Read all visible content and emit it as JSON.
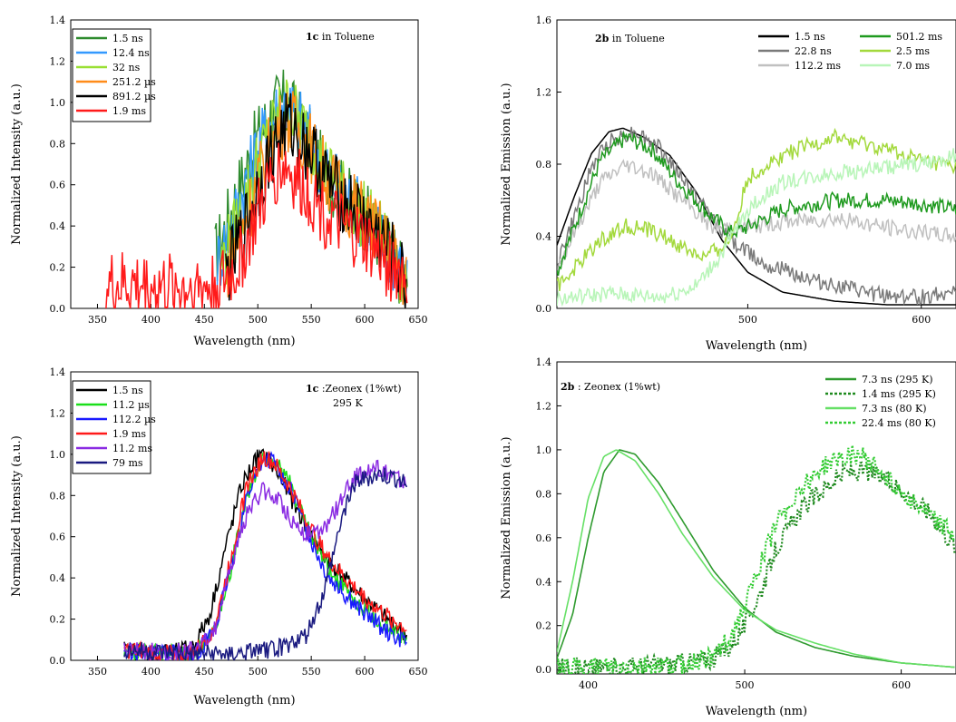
{
  "chart_data": [
    {
      "type": "line",
      "annotation": [
        "1c in Toluene"
      ],
      "annotation_bold_prefix": "1c",
      "xlabel": "Wavelength (nm)",
      "ylabel": "Normalized Intensity (a.u.)",
      "xlim": [
        325,
        650
      ],
      "ylim": [
        0,
        1.4
      ],
      "xticks": [
        350,
        400,
        450,
        500,
        550,
        600,
        650
      ],
      "yticks": [
        0.0,
        0.2,
        0.4,
        0.6,
        0.8,
        1.0,
        1.2,
        1.4
      ],
      "ytick_labels": [
        "0.0",
        "0.2",
        "0.4",
        "0.6",
        "0.8",
        "1.0",
        "1.2",
        "1.4"
      ],
      "legend": "top-left boxed",
      "series": [
        {
          "name": "1.5 ns",
          "color": "#2e8b2e",
          "x": [
            460,
            480,
            500,
            515,
            522,
            530,
            545,
            560,
            580,
            600,
            620,
            640
          ],
          "y": [
            0.25,
            0.55,
            0.83,
            0.97,
            1.0,
            0.97,
            0.85,
            0.68,
            0.55,
            0.45,
            0.3,
            0.12
          ]
        },
        {
          "name": "12.4 ns",
          "color": "#3399ff",
          "x": [
            462,
            480,
            500,
            518,
            526,
            533,
            548,
            563,
            582,
            602,
            622,
            640
          ],
          "y": [
            0.22,
            0.47,
            0.78,
            0.96,
            1.0,
            0.96,
            0.84,
            0.67,
            0.54,
            0.44,
            0.29,
            0.12
          ]
        },
        {
          "name": "32 ns",
          "color": "#99e033",
          "x": [
            465,
            482,
            502,
            520,
            528,
            535,
            550,
            565,
            584,
            604,
            624,
            640
          ],
          "y": [
            0.2,
            0.42,
            0.74,
            0.93,
            0.98,
            0.93,
            0.82,
            0.66,
            0.53,
            0.43,
            0.28,
            0.12
          ]
        },
        {
          "name": "251.2 µs",
          "color": "#ff8c1a",
          "x": [
            470,
            485,
            505,
            520,
            528,
            535,
            550,
            565,
            585,
            605,
            625,
            640
          ],
          "y": [
            0.18,
            0.38,
            0.7,
            0.88,
            0.92,
            0.88,
            0.78,
            0.64,
            0.52,
            0.42,
            0.28,
            0.12
          ]
        },
        {
          "name": "891.2 µs",
          "color": "#000000",
          "x": [
            470,
            485,
            505,
            520,
            528,
            535,
            550,
            565,
            585,
            605,
            625,
            640
          ],
          "y": [
            0.15,
            0.35,
            0.66,
            0.84,
            0.9,
            0.86,
            0.76,
            0.62,
            0.5,
            0.4,
            0.26,
            0.1
          ]
        },
        {
          "name": "1.9 ms",
          "color": "#ff1a1a",
          "x": [
            358,
            380,
            400,
            420,
            440,
            460,
            480,
            500,
            515,
            525,
            535,
            550,
            565,
            580,
            600,
            620,
            640
          ],
          "y": [
            0.1,
            0.11,
            0.1,
            0.1,
            0.1,
            0.1,
            0.18,
            0.45,
            0.65,
            0.7,
            0.62,
            0.55,
            0.45,
            0.38,
            0.32,
            0.22,
            0.15
          ]
        }
      ]
    },
    {
      "type": "line",
      "annotation": [
        "2b in Toluene"
      ],
      "annotation_bold_prefix": "2b",
      "xlabel": "Wavelength (nm)",
      "ylabel": "Normalized Emission (a.u.)",
      "xlim": [
        390,
        620
      ],
      "ylim": [
        0,
        1.6
      ],
      "xticks": [
        500,
        600
      ],
      "yticks": [
        0.0,
        0.4,
        0.8,
        1.2,
        1.6
      ],
      "ytick_labels": [
        "0.0",
        "0.4",
        "0.8",
        "1.2",
        "1.6"
      ],
      "legend": "top-right",
      "series": [
        {
          "name": "1.5 ns",
          "color": "#000000",
          "x": [
            390,
            400,
            410,
            420,
            428,
            440,
            455,
            470,
            485,
            500,
            520,
            550,
            580,
            620
          ],
          "y": [
            0.35,
            0.62,
            0.86,
            0.98,
            1.0,
            0.95,
            0.85,
            0.65,
            0.38,
            0.2,
            0.09,
            0.04,
            0.02,
            0.02
          ]
        },
        {
          "name": "22.8 ns",
          "color": "#7a7a7a",
          "x": [
            390,
            400,
            410,
            420,
            435,
            450,
            470,
            490,
            510,
            540,
            570,
            600,
            620
          ],
          "y": [
            0.25,
            0.5,
            0.78,
            0.93,
            0.98,
            0.88,
            0.62,
            0.38,
            0.25,
            0.15,
            0.08,
            0.06,
            0.1
          ]
        },
        {
          "name": "112.2 ms",
          "color": "#c0c0c0",
          "x": [
            390,
            400,
            415,
            430,
            445,
            460,
            480,
            500,
            520,
            550,
            580,
            600,
            620
          ],
          "y": [
            0.22,
            0.42,
            0.7,
            0.8,
            0.75,
            0.62,
            0.45,
            0.45,
            0.48,
            0.5,
            0.45,
            0.42,
            0.4
          ]
        },
        {
          "name": "501.2 ms",
          "color": "#1f9a1f",
          "x": [
            390,
            400,
            415,
            430,
            445,
            460,
            480,
            490,
            500,
            520,
            550,
            580,
            600,
            620
          ],
          "y": [
            0.2,
            0.45,
            0.82,
            0.95,
            0.88,
            0.7,
            0.5,
            0.42,
            0.45,
            0.55,
            0.6,
            0.6,
            0.58,
            0.55
          ]
        },
        {
          "name": "2.5 ms",
          "color": "#a3d93c",
          "x": [
            390,
            400,
            415,
            430,
            445,
            460,
            475,
            490,
            500,
            520,
            550,
            580,
            600,
            620
          ],
          "y": [
            0.12,
            0.22,
            0.38,
            0.46,
            0.43,
            0.35,
            0.28,
            0.38,
            0.72,
            0.85,
            0.95,
            0.88,
            0.82,
            0.78
          ]
        },
        {
          "name": "7.0 ms",
          "color": "#b8f5b8",
          "x": [
            390,
            420,
            450,
            470,
            485,
            500,
            520,
            550,
            580,
            600,
            620
          ],
          "y": [
            0.05,
            0.08,
            0.06,
            0.12,
            0.3,
            0.55,
            0.7,
            0.75,
            0.78,
            0.8,
            0.85
          ]
        }
      ]
    },
    {
      "type": "line",
      "annotation": [
        "1c :Zeonex (1%wt)",
        "295 K"
      ],
      "annotation_bold_prefix": "1c",
      "xlabel": "Wavelength (nm)",
      "ylabel": "Normalized Intensity (a.u.)",
      "xlim": [
        325,
        650
      ],
      "ylim": [
        0,
        1.4
      ],
      "xticks": [
        350,
        400,
        450,
        500,
        550,
        600,
        650
      ],
      "yticks": [
        0.0,
        0.2,
        0.4,
        0.6,
        0.8,
        1.0,
        1.2,
        1.4
      ],
      "ytick_labels": [
        "0.0",
        "0.2",
        "0.4",
        "0.6",
        "0.8",
        "1.0",
        "1.2",
        "1.4"
      ],
      "legend": "top-left boxed",
      "series": [
        {
          "name": "1.5 ns",
          "color": "#000000",
          "x": [
            375,
            400,
            425,
            440,
            455,
            470,
            485,
            500,
            510,
            525,
            540,
            560,
            580,
            600,
            620,
            640
          ],
          "y": [
            0.05,
            0.04,
            0.04,
            0.07,
            0.22,
            0.55,
            0.85,
            0.99,
            0.98,
            0.85,
            0.7,
            0.52,
            0.4,
            0.3,
            0.2,
            0.12
          ]
        },
        {
          "name": "11.2 µs",
          "color": "#1adf1a",
          "x": [
            375,
            400,
            430,
            445,
            460,
            475,
            490,
            505,
            515,
            530,
            545,
            565,
            585,
            605,
            625,
            640
          ],
          "y": [
            0.05,
            0.04,
            0.03,
            0.05,
            0.15,
            0.45,
            0.8,
            0.99,
            0.97,
            0.86,
            0.66,
            0.45,
            0.32,
            0.22,
            0.15,
            0.11
          ]
        },
        {
          "name": "112.2 µs",
          "color": "#1a1aff",
          "x": [
            375,
            400,
            430,
            445,
            460,
            475,
            490,
            505,
            515,
            530,
            545,
            565,
            585,
            605,
            625,
            640
          ],
          "y": [
            0.05,
            0.04,
            0.03,
            0.05,
            0.15,
            0.45,
            0.8,
            0.98,
            0.96,
            0.84,
            0.64,
            0.42,
            0.3,
            0.2,
            0.13,
            0.09
          ]
        },
        {
          "name": "1.9 ms",
          "color": "#ff1a1a",
          "x": [
            375,
            400,
            430,
            445,
            460,
            475,
            490,
            505,
            515,
            530,
            545,
            565,
            585,
            605,
            625,
            640
          ],
          "y": [
            0.05,
            0.04,
            0.03,
            0.06,
            0.17,
            0.5,
            0.85,
            0.99,
            0.96,
            0.84,
            0.68,
            0.5,
            0.38,
            0.28,
            0.2,
            0.15
          ]
        },
        {
          "name": "11.2 ms",
          "color": "#8a2be2",
          "x": [
            375,
            400,
            430,
            445,
            460,
            475,
            490,
            505,
            520,
            535,
            550,
            560,
            575,
            590,
            605,
            620,
            640
          ],
          "y": [
            0.05,
            0.04,
            0.04,
            0.05,
            0.15,
            0.45,
            0.72,
            0.82,
            0.78,
            0.66,
            0.6,
            0.62,
            0.75,
            0.88,
            0.93,
            0.92,
            0.85
          ]
        },
        {
          "name": "79 ms",
          "color": "#1a1a80",
          "x": [
            375,
            400,
            440,
            480,
            520,
            545,
            560,
            570,
            580,
            590,
            600,
            615,
            630,
            640
          ],
          "y": [
            0.05,
            0.04,
            0.03,
            0.03,
            0.06,
            0.12,
            0.3,
            0.5,
            0.72,
            0.86,
            0.88,
            0.9,
            0.88,
            0.85
          ]
        }
      ]
    },
    {
      "type": "line",
      "annotation": [
        "2b : Zeonex (1%wt)"
      ],
      "annotation_bold_prefix": "2b",
      "xlabel": "Wavelength (nm)",
      "ylabel": "Normalized Emission (a.u.)",
      "xlim": [
        380,
        635
      ],
      "ylim": [
        -0.02,
        1.4
      ],
      "xticks": [
        400,
        500,
        600
      ],
      "yticks": [
        0.0,
        0.2,
        0.4,
        0.6,
        0.8,
        1.0,
        1.2,
        1.4
      ],
      "ytick_labels": [
        "0.0",
        "0.2",
        "0.4",
        "0.6",
        "0.8",
        "1.0",
        "1.2",
        "1.4"
      ],
      "legend": "top-right",
      "series": [
        {
          "name": "7.3 ns (295 K)",
          "color": "#2e9a2e",
          "style": "solid",
          "x": [
            380,
            390,
            400,
            410,
            420,
            430,
            445,
            460,
            480,
            500,
            520,
            545,
            570,
            600,
            635
          ],
          "y": [
            0.05,
            0.25,
            0.6,
            0.9,
            1.0,
            0.98,
            0.85,
            0.68,
            0.45,
            0.28,
            0.17,
            0.1,
            0.06,
            0.03,
            0.01
          ]
        },
        {
          "name": "1.4 ms (295 K)",
          "color": "#1f8a1f",
          "style": "dotted",
          "x": [
            380,
            420,
            460,
            480,
            490,
            500,
            510,
            520,
            535,
            550,
            565,
            580,
            600,
            620,
            635
          ],
          "y": [
            0.01,
            0.01,
            0.03,
            0.05,
            0.1,
            0.2,
            0.35,
            0.55,
            0.72,
            0.82,
            0.9,
            0.9,
            0.82,
            0.7,
            0.55
          ]
        },
        {
          "name": "7.3 ns (80 K)",
          "color": "#66e066",
          "style": "solid",
          "x": [
            380,
            390,
            400,
            410,
            418,
            430,
            445,
            460,
            480,
            500,
            520,
            545,
            570,
            600,
            635
          ],
          "y": [
            0.08,
            0.4,
            0.78,
            0.97,
            1.0,
            0.95,
            0.8,
            0.62,
            0.42,
            0.27,
            0.18,
            0.12,
            0.07,
            0.03,
            0.01
          ]
        },
        {
          "name": "22.4 ms (80 K)",
          "color": "#33cc33",
          "style": "dotted",
          "x": [
            380,
            420,
            460,
            480,
            490,
            500,
            510,
            520,
            535,
            550,
            565,
            575,
            590,
            610,
            635
          ],
          "y": [
            0.01,
            0.01,
            0.02,
            0.06,
            0.14,
            0.28,
            0.48,
            0.66,
            0.82,
            0.92,
            0.98,
            0.97,
            0.88,
            0.75,
            0.6
          ]
        }
      ]
    }
  ]
}
